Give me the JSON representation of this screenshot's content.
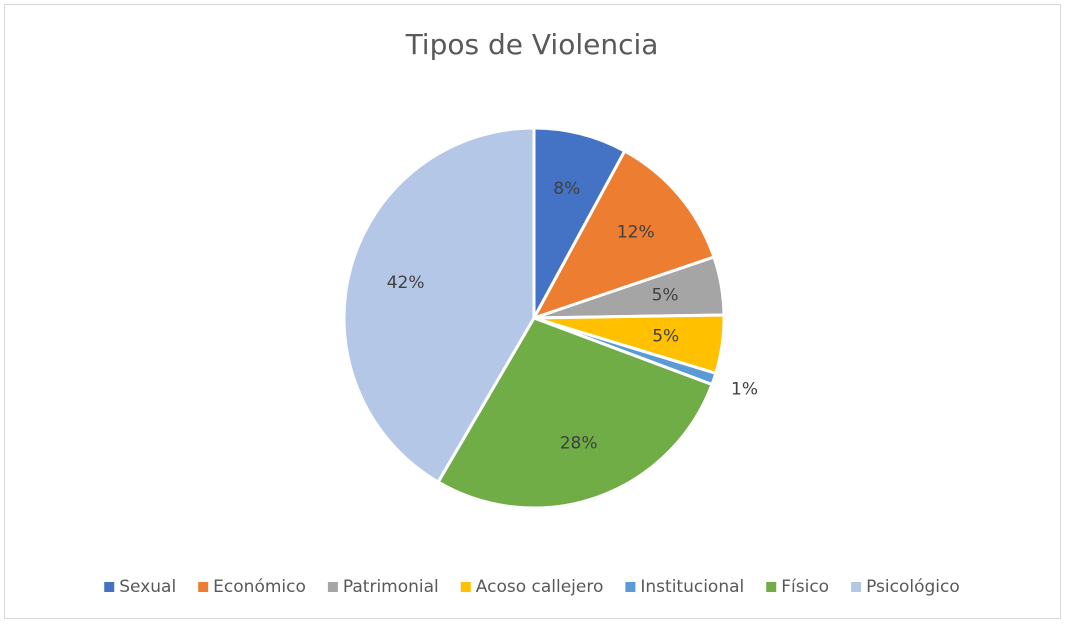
{
  "chart_data": {
    "type": "pie",
    "title": "Tipos de Violencia",
    "categories": [
      "Sexual",
      "Económico",
      "Patrimonial",
      "Acoso callejero",
      "Institucional",
      "Físico",
      "Psicológico"
    ],
    "values": [
      8,
      12,
      5,
      5,
      1,
      28,
      42
    ],
    "value_labels": [
      "8%",
      "12%",
      "5%",
      "5%",
      "1%",
      "28%",
      "42%"
    ],
    "colors": [
      "#4472c4",
      "#ed7d31",
      "#a5a5a5",
      "#ffc000",
      "#5b9bd5",
      "#70ad47",
      "#b4c7e7"
    ],
    "legend": "bottom"
  }
}
